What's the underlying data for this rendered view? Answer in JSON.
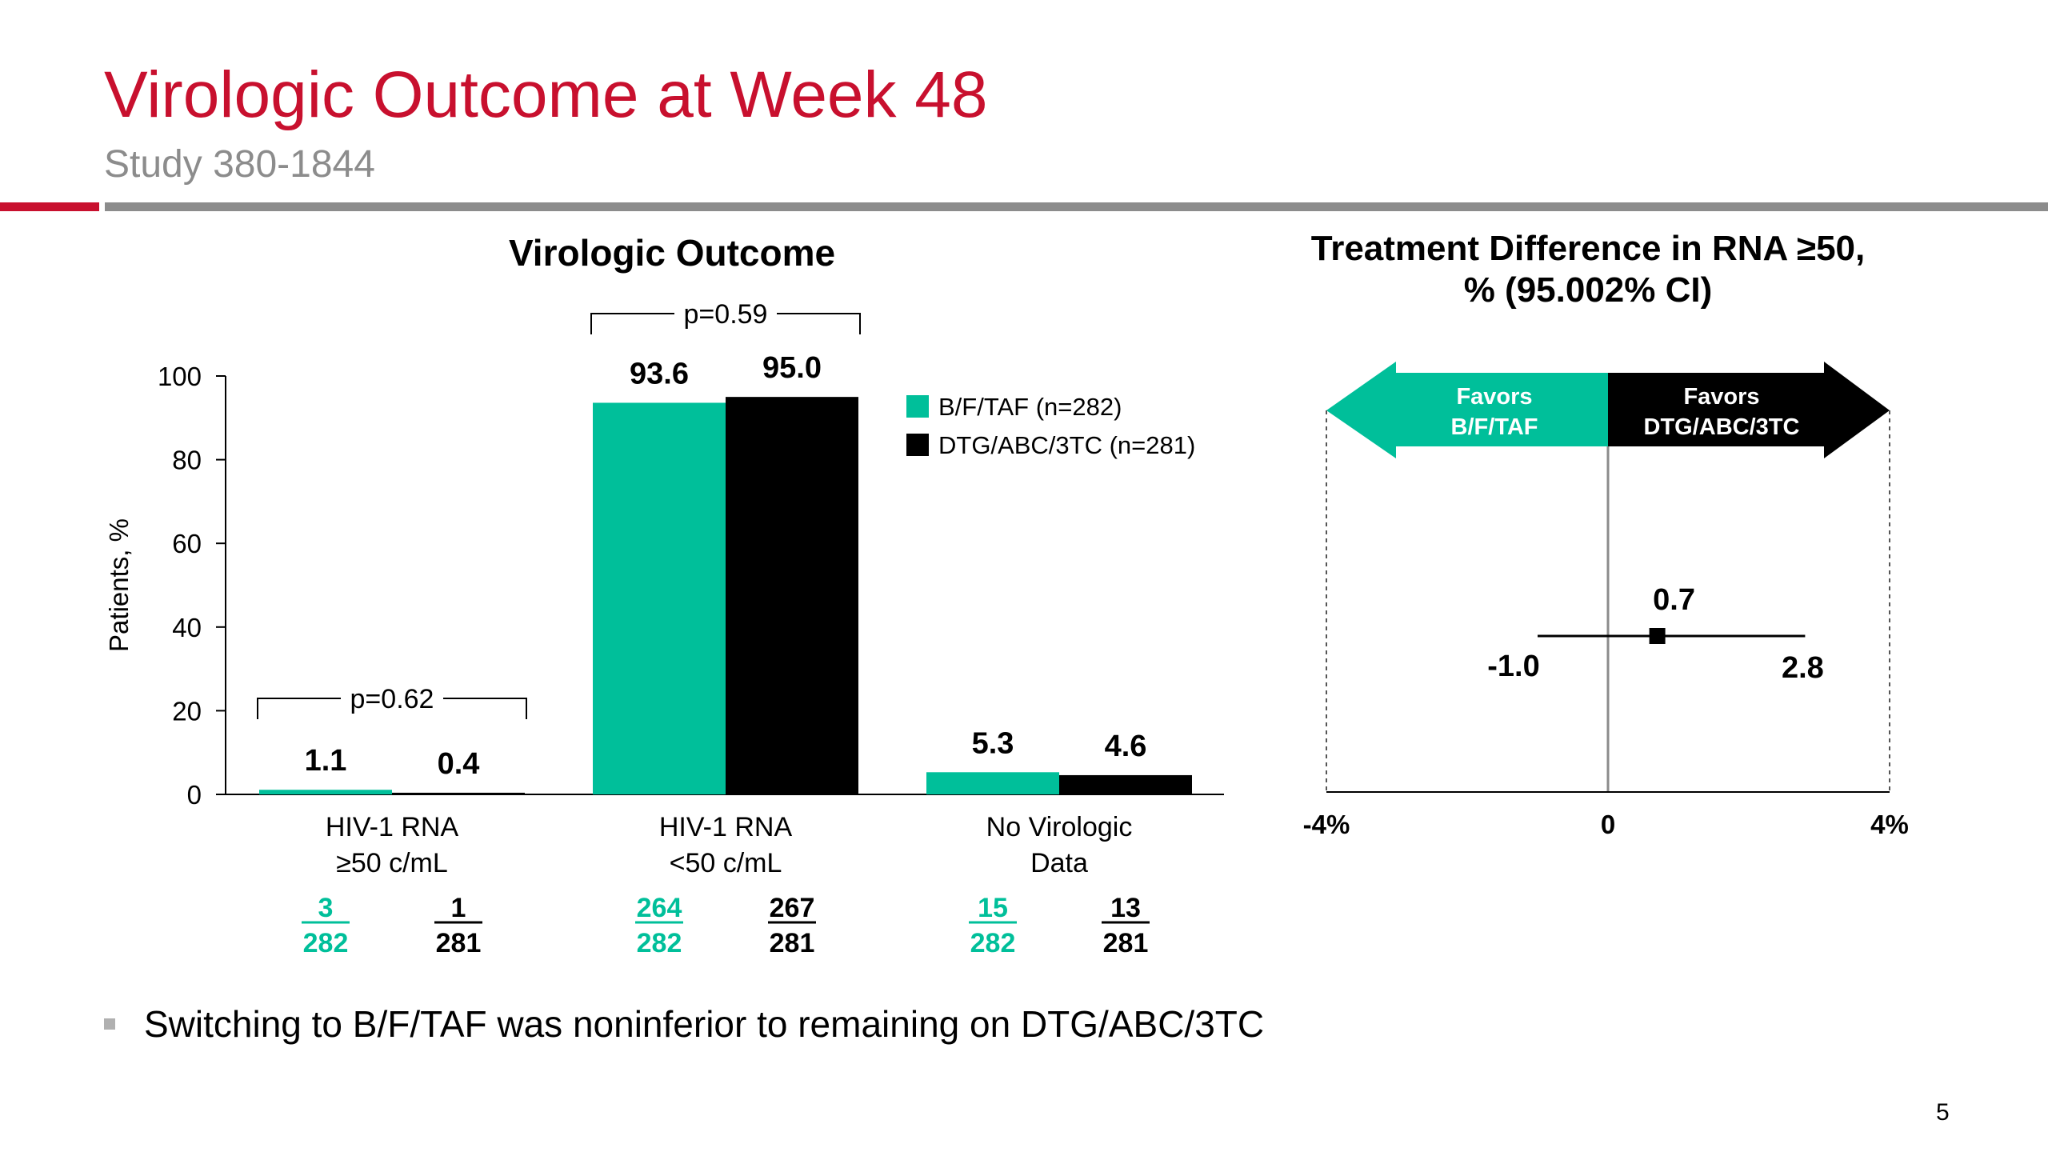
{
  "slide": {
    "title": "Virologic Outcome at Week 48",
    "subtitle": "Study 380-1844",
    "bullet": "Switching to B/F/TAF was noninferior to remaining on DTG/ABC/3TC",
    "page_number": "5"
  },
  "colors": {
    "title": "#c8102e",
    "teal": "#00bf9a",
    "black": "#000000",
    "gray": "#8c8c8c"
  },
  "chart_data": [
    {
      "type": "bar",
      "title": "Virologic Outcome",
      "ylabel": "Patients, %",
      "ylim": [
        0,
        100
      ],
      "yticks": [
        "0",
        "20",
        "40",
        "60",
        "80",
        "100"
      ],
      "categories": [
        [
          "HIV-1 RNA",
          "≥50 c/mL"
        ],
        [
          "HIV-1 RNA",
          "<50 c/mL"
        ],
        [
          "No Virologic",
          "Data"
        ]
      ],
      "series": [
        {
          "name": "B/F/TAF (n=282)",
          "color": "#00bf9a",
          "values": [
            1.1,
            93.6,
            5.3
          ],
          "labels": [
            "1.1",
            "93.6",
            "5.3"
          ],
          "numerators": [
            "3",
            "264",
            "15"
          ],
          "denominators": [
            "282",
            "282",
            "282"
          ]
        },
        {
          "name": "DTG/ABC/3TC (n=281)",
          "color": "#000000",
          "values": [
            0.4,
            95.0,
            4.6
          ],
          "labels": [
            "0.4",
            "95.0",
            "4.6"
          ],
          "numerators": [
            "1",
            "267",
            "13"
          ],
          "denominators": [
            "281",
            "281",
            "281"
          ]
        }
      ],
      "annotations": [
        {
          "category": 0,
          "text": "p=0.62"
        },
        {
          "category": 1,
          "text": "p=0.59"
        }
      ],
      "legend": "right"
    },
    {
      "type": "scatter",
      "title": [
        "Treatment Difference in RNA ≥50,",
        "% (95.002% CI)"
      ],
      "xlim": [
        -4,
        4
      ],
      "xticks": [
        "-4%",
        "0",
        "4%"
      ],
      "point": {
        "value": 0.7,
        "lower": -1.0,
        "upper": 2.8,
        "value_label": "0.7",
        "lower_label": "-1.0",
        "upper_label": "2.8"
      },
      "arrows": [
        {
          "side": "left",
          "lines": [
            "Favors",
            "B/F/TAF"
          ],
          "color": "#00bf9a"
        },
        {
          "side": "right",
          "lines": [
            "Favors",
            "DTG/ABC/3TC"
          ],
          "color": "#000000"
        }
      ]
    }
  ]
}
